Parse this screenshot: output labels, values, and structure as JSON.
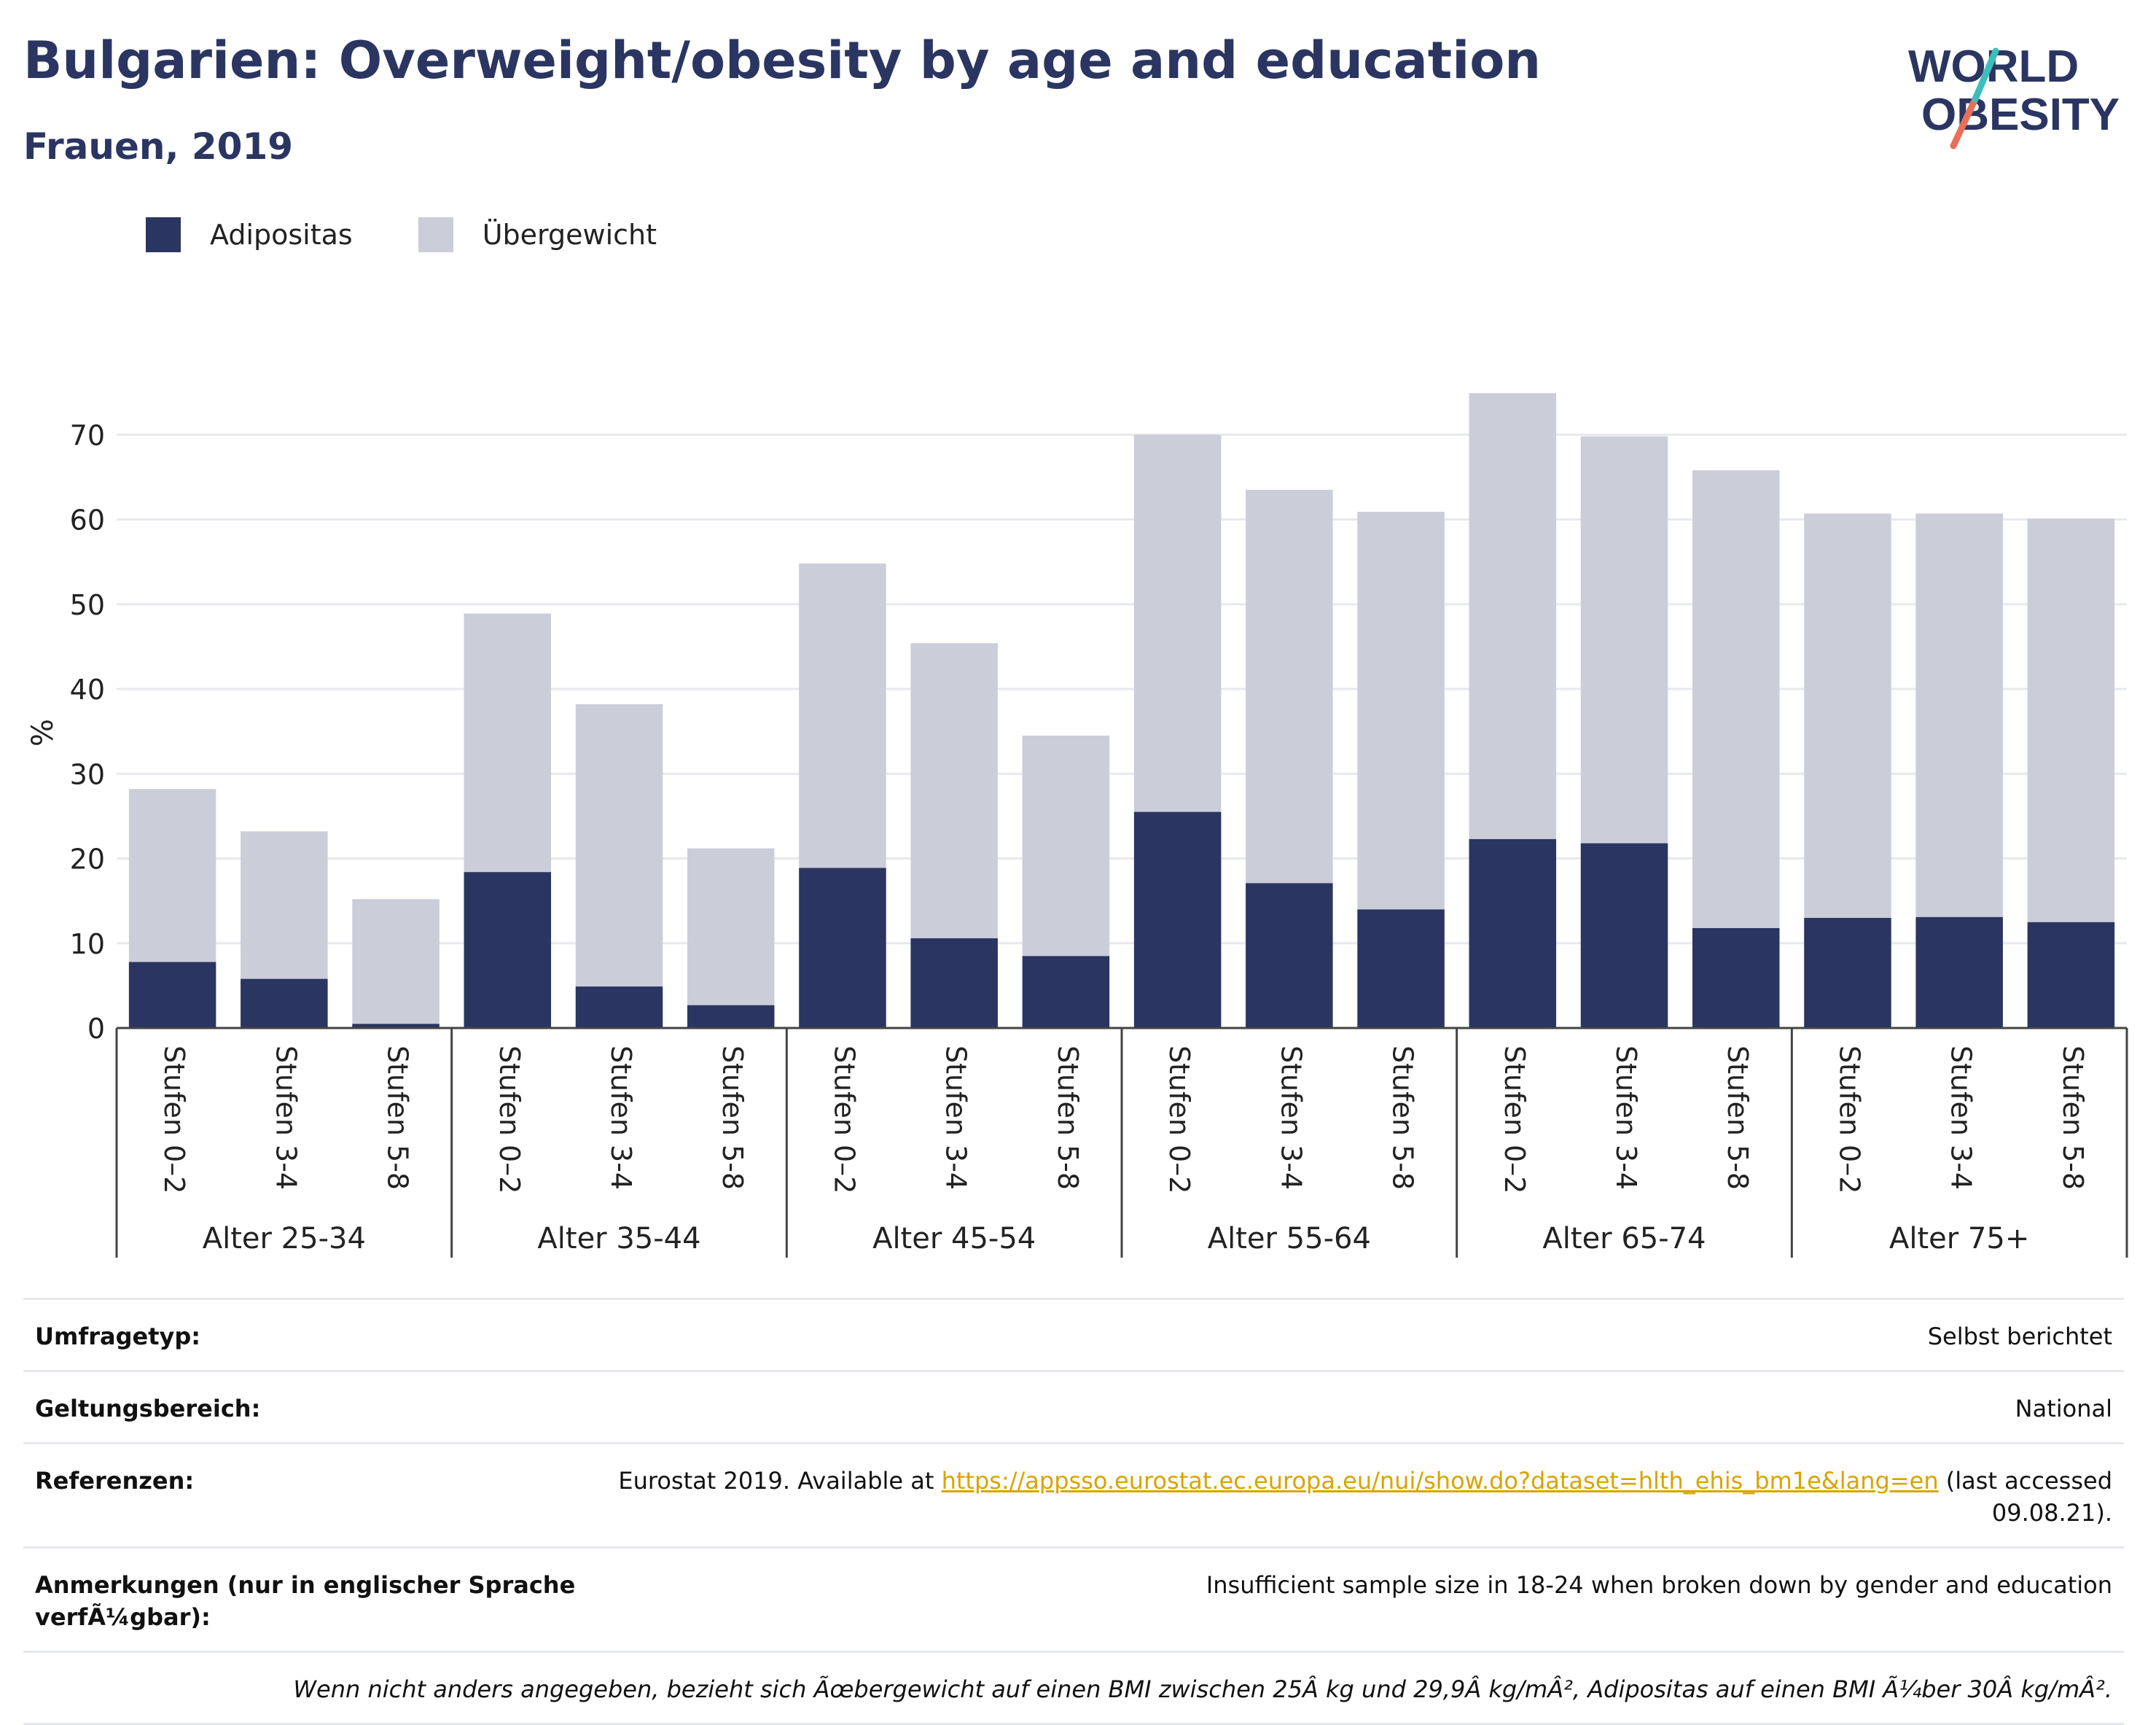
{
  "header": {
    "title": "Bulgarien: Overweight/obesity by age and education",
    "subtitle": "Frauen, 2019"
  },
  "logo": {
    "line1": "WORLD",
    "line2": "OBESITY"
  },
  "colors": {
    "adipositas": "#2b3561",
    "uebergewicht": "#cbcdd9",
    "text": "#2b3561",
    "link": "#d9a400",
    "logo_teal": "#3dbdbd",
    "logo_coral": "#e8705a"
  },
  "chart_data": {
    "type": "bar",
    "stacked": true,
    "ylabel": "%",
    "ylim": [
      0,
      80
    ],
    "yticks": [
      0,
      10,
      20,
      30,
      40,
      50,
      60,
      70
    ],
    "grid": true,
    "legend_position": "top-left",
    "groups": [
      "Alter 25-34",
      "Alter 35-44",
      "Alter 45-54",
      "Alter 55-64",
      "Alter 65-74",
      "Alter 75+"
    ],
    "subcategories": [
      "Stufen 0–2",
      "Stufen 3-4",
      "Stufen 5-8"
    ],
    "series": [
      {
        "name": "Adipositas",
        "values": [
          7.8,
          5.8,
          0.5,
          18.4,
          4.9,
          2.7,
          18.9,
          10.6,
          8.5,
          25.5,
          17.1,
          14.0,
          22.3,
          21.8,
          11.8,
          13.0,
          13.1,
          12.5
        ]
      },
      {
        "name": "Übergewicht",
        "values": [
          20.4,
          17.4,
          14.7,
          30.5,
          33.3,
          18.5,
          35.9,
          34.8,
          26.0,
          44.5,
          46.4,
          46.9,
          52.6,
          48.0,
          54.0,
          47.7,
          47.6,
          47.6
        ]
      }
    ]
  },
  "meta": {
    "survey_label": "Umfragetyp:",
    "survey_value": "Selbst berichtet",
    "scope_label": "Geltungsbereich:",
    "scope_value": "National",
    "ref_label": "Referenzen:",
    "ref_prefix": "Eurostat 2019. Available at ",
    "ref_link": "https://appsso.eurostat.ec.europa.eu/nui/show.do?dataset=hlth_ehis_bm1e&lang=en",
    "ref_suffix": " (last accessed",
    "ref_date": "09.08.21).",
    "notes_label": "Anmerkungen (nur in englischer Sprache verfÃ¼gbar):",
    "notes_value": "Insufficient sample size in 18-24 when broken down by gender and education",
    "footnote": "Wenn nicht anders angegeben, bezieht sich Ãœbergewicht auf einen BMI zwischen 25Â kg und 29,9Â kg/mÂ², Adipositas auf einen BMI Ã¼ber 30Â kg/mÂ²."
  }
}
